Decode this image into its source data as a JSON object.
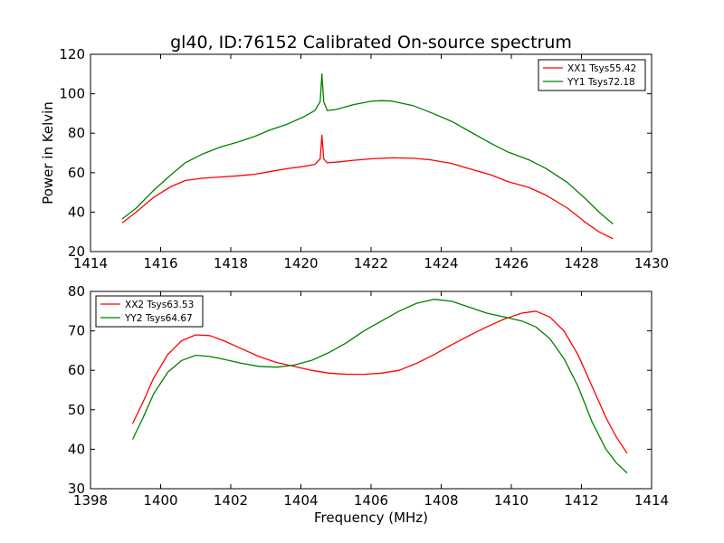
{
  "figure": {
    "title": "gl40, ID:76152 Calibrated On-source spectrum",
    "ylabel": "Power in Kelvin",
    "xlabel": "Frequency (MHz)"
  },
  "chart_data": [
    {
      "type": "line",
      "ylabel": "Power in Kelvin",
      "xlim": [
        1414,
        1430
      ],
      "ylim": [
        20,
        120
      ],
      "xticks": [
        1414,
        1416,
        1418,
        1420,
        1422,
        1424,
        1426,
        1428,
        1430
      ],
      "yticks": [
        20,
        40,
        60,
        80,
        100,
        120
      ],
      "grid": false,
      "legend_position": "top-right",
      "series": [
        {
          "name": "XX1 Tsys55.42",
          "color": "#ff0000",
          "x": [
            1414.9,
            1415.3,
            1415.8,
            1416.3,
            1416.7,
            1417.2,
            1417.7,
            1418.2,
            1418.7,
            1419.1,
            1419.6,
            1420.1,
            1420.4,
            1420.55,
            1420.6,
            1420.65,
            1420.75,
            1421.0,
            1421.5,
            1422.0,
            1422.6,
            1423.2,
            1423.7,
            1424.3,
            1424.8,
            1425.4,
            1425.9,
            1426.5,
            1427.0,
            1427.6,
            1428.1,
            1428.5,
            1428.9
          ],
          "y": [
            34.5,
            40,
            47.5,
            53,
            56,
            57.2,
            57.8,
            58.4,
            59.2,
            60.5,
            62,
            63.2,
            64.2,
            67,
            79,
            67,
            65,
            65.3,
            66.3,
            67,
            67.5,
            67.3,
            66.5,
            64.7,
            62,
            59,
            55.5,
            52.5,
            48.5,
            42,
            35,
            30,
            26.5
          ]
        },
        {
          "name": "YY1 Tsys72.18",
          "color": "#008000",
          "x": [
            1414.9,
            1415.3,
            1415.8,
            1416.3,
            1416.7,
            1417.2,
            1417.7,
            1418.2,
            1418.7,
            1419.1,
            1419.6,
            1420.1,
            1420.4,
            1420.55,
            1420.6,
            1420.65,
            1420.75,
            1421.0,
            1421.5,
            1422.0,
            1422.3,
            1422.6,
            1423.2,
            1423.7,
            1424.3,
            1424.8,
            1425.4,
            1425.9,
            1426.5,
            1427.0,
            1427.6,
            1428.1,
            1428.5,
            1428.9
          ],
          "y": [
            36.5,
            42,
            51,
            59,
            65,
            69.5,
            73,
            75.5,
            78.5,
            81.5,
            84.5,
            88.5,
            91.5,
            96,
            110,
            96,
            91.5,
            92,
            94.5,
            96.2,
            96.5,
            96.3,
            94,
            90.5,
            86,
            81,
            75,
            70.5,
            66.5,
            62,
            55,
            47,
            40,
            34
          ]
        }
      ]
    },
    {
      "type": "line",
      "xlabel": "Frequency (MHz)",
      "xlim": [
        1398,
        1414
      ],
      "ylim": [
        30,
        80
      ],
      "xticks": [
        1398,
        1400,
        1402,
        1404,
        1406,
        1408,
        1410,
        1412,
        1414
      ],
      "yticks": [
        30,
        40,
        50,
        60,
        70,
        80
      ],
      "grid": false,
      "legend_position": "top-left",
      "series": [
        {
          "name": "XX2 Tsys63.53",
          "color": "#ff0000",
          "x": [
            1399.2,
            1399.5,
            1399.8,
            1400.2,
            1400.6,
            1401.0,
            1401.4,
            1401.8,
            1402.3,
            1402.8,
            1403.3,
            1403.8,
            1404.3,
            1404.8,
            1405.3,
            1405.8,
            1406.3,
            1406.8,
            1407.3,
            1407.8,
            1408.3,
            1408.8,
            1409.3,
            1409.8,
            1410.3,
            1410.7,
            1411.1,
            1411.5,
            1411.9,
            1412.3,
            1412.7,
            1413.0,
            1413.3
          ],
          "y": [
            46.5,
            52,
            58,
            64,
            67.5,
            69,
            68.8,
            67.5,
            65.5,
            63.5,
            62,
            61,
            60,
            59.3,
            59,
            59,
            59.3,
            60,
            61.8,
            64,
            66.5,
            68.8,
            71,
            73,
            74.5,
            75,
            73.5,
            70,
            64,
            56,
            48,
            43,
            39
          ]
        },
        {
          "name": "YY2 Tsys64.67",
          "color": "#008000",
          "x": [
            1399.2,
            1399.5,
            1399.8,
            1400.2,
            1400.6,
            1401.0,
            1401.4,
            1401.8,
            1402.3,
            1402.8,
            1403.3,
            1403.8,
            1404.3,
            1404.8,
            1405.3,
            1405.8,
            1406.3,
            1406.8,
            1407.3,
            1407.8,
            1408.3,
            1408.8,
            1409.3,
            1409.8,
            1410.3,
            1410.7,
            1411.1,
            1411.5,
            1411.9,
            1412.3,
            1412.7,
            1413.0,
            1413.3
          ],
          "y": [
            42.5,
            48,
            54,
            59.5,
            62.5,
            63.8,
            63.5,
            62.8,
            61.8,
            61,
            60.8,
            61.3,
            62.5,
            64.5,
            67,
            70,
            72.5,
            75,
            77,
            78,
            77.5,
            76,
            74.5,
            73.5,
            72.5,
            71,
            68,
            63,
            56,
            47,
            40,
            36.5,
            34
          ]
        }
      ]
    }
  ]
}
